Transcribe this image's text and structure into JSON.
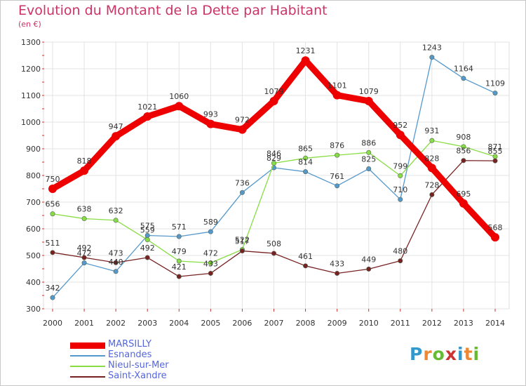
{
  "title": "Evolution du Montant de la Dette par Habitant",
  "subtitle": "(en €)",
  "logo_text": "Proxiti",
  "chart_data": {
    "type": "line",
    "title": "Evolution du Montant de la Dette par Habitant",
    "subtitle": "(en €)",
    "x": [
      "2000",
      "2001",
      "2002",
      "2003",
      "2004",
      "2005",
      "2006",
      "2007",
      "2008",
      "2009",
      "2010",
      "2011",
      "2012",
      "2013",
      "2014"
    ],
    "ylim": [
      300,
      1300
    ],
    "yticks": [
      300,
      400,
      500,
      600,
      700,
      800,
      900,
      1000,
      1100,
      1200,
      1300
    ],
    "grid": true,
    "legend_position": "bottom-left",
    "series": [
      {
        "name": "MARSILLY",
        "color": "#ee0000",
        "values": [
          750,
          818,
          947,
          1021,
          1060,
          993,
          972,
          1079,
          1231,
          1101,
          1079,
          952,
          828,
          695,
          568
        ]
      },
      {
        "name": "Esnandes",
        "color": "#5599cc",
        "values": [
          342,
          472,
          440,
          575,
          571,
          589,
          736,
          829,
          814,
          761,
          825,
          710,
          1243,
          1164,
          1109
        ]
      },
      {
        "name": "Nieul-sur-Mer",
        "color": "#88dd44",
        "values": [
          656,
          638,
          632,
          559,
          479,
          472,
          522,
          846,
          865,
          876,
          886,
          799,
          931,
          908,
          871
        ]
      },
      {
        "name": "Saint-Xandre",
        "color": "#772222",
        "values": [
          511,
          492,
          473,
          492,
          421,
          433,
          517,
          508,
          461,
          433,
          449,
          480,
          728,
          856,
          855
        ]
      }
    ]
  }
}
